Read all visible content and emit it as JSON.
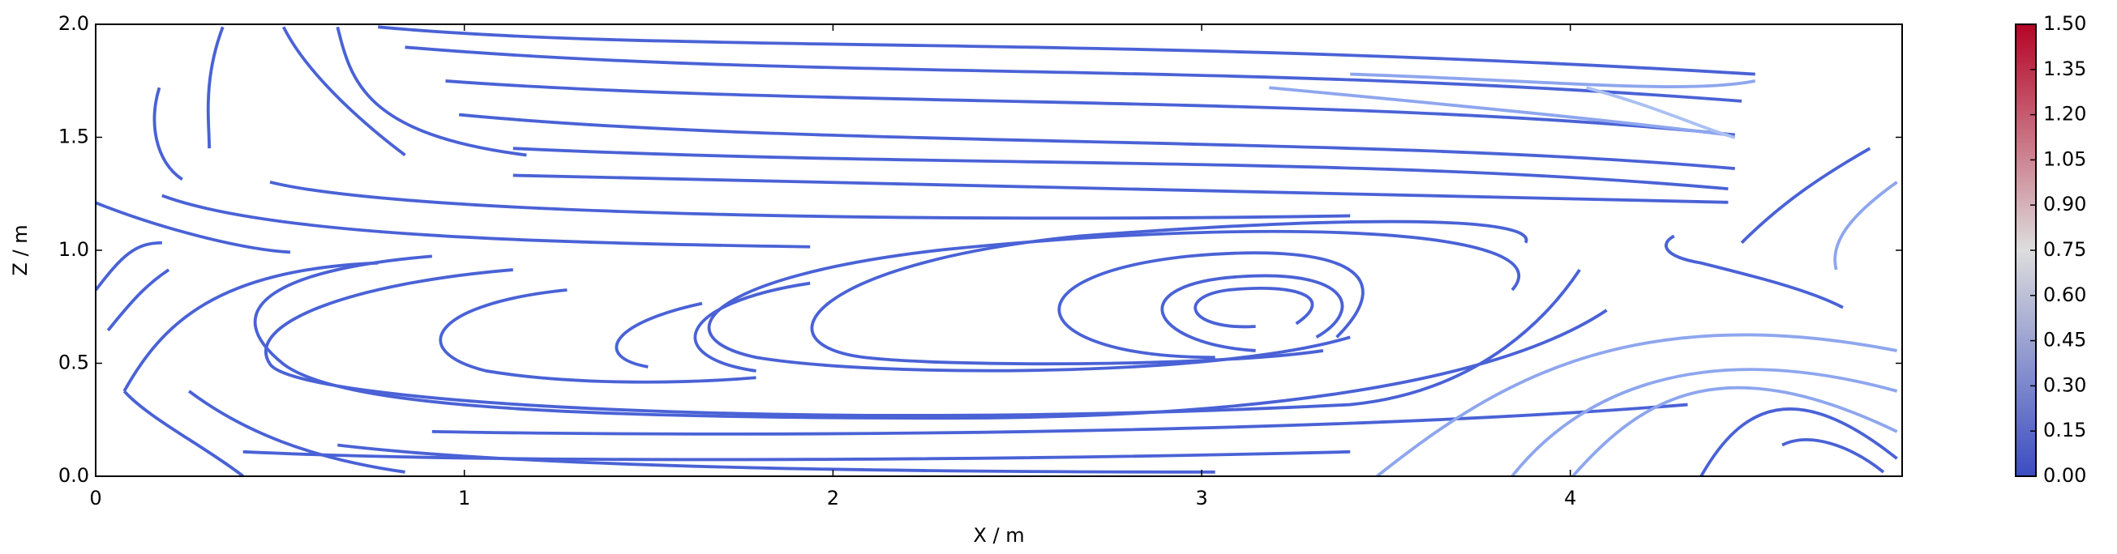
{
  "chart_data": {
    "type": "streamplot",
    "xlabel": "X / m",
    "ylabel": "Z / m",
    "xlim": [
      0,
      4.9
    ],
    "xticks": [
      0,
      1,
      2,
      3,
      4
    ],
    "ylim": [
      0,
      2
    ],
    "yticks": [
      {
        "value": 0,
        "label": "0.0"
      },
      {
        "value": 0.5,
        "label": "0.5"
      },
      {
        "value": 1,
        "label": "1.0"
      },
      {
        "value": 1.5,
        "label": "1.5"
      },
      {
        "value": 2,
        "label": "2.0"
      }
    ],
    "colorbar": {
      "lim": [
        0,
        1.5
      ],
      "colors": [
        "#3b4cc0",
        "#dddddd",
        "#b40426"
      ],
      "ticks": [
        {
          "value": 0,
          "label": "0.00"
        },
        {
          "value": 0.15,
          "label": "0.15"
        },
        {
          "value": 0.3,
          "label": "0.30"
        },
        {
          "value": 0.45,
          "label": "0.45"
        },
        {
          "value": 0.6,
          "label": "0.60"
        },
        {
          "value": 0.75,
          "label": "0.75"
        },
        {
          "value": 0.9,
          "label": "0.90"
        },
        {
          "value": 1.05,
          "label": "1.05"
        },
        {
          "value": 1.2,
          "label": "1.20"
        },
        {
          "value": 1.35,
          "label": "1.35"
        },
        {
          "value": 1.5,
          "label": "1.50"
        }
      ]
    }
  }
}
